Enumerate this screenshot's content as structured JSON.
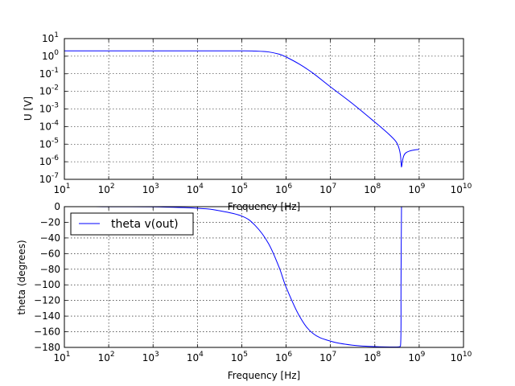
{
  "chart_data": [
    {
      "type": "line",
      "xlabel": "Frequency [Hz]",
      "ylabel": "U [V]",
      "xscale": "log",
      "yscale": "log",
      "xlim": [
        10,
        10000000000
      ],
      "ylim": [
        1e-07,
        10
      ],
      "xticks": [
        {
          "base": "10",
          "exp": "1"
        },
        {
          "base": "10",
          "exp": "2"
        },
        {
          "base": "10",
          "exp": "3"
        },
        {
          "base": "10",
          "exp": "4"
        },
        {
          "base": "10",
          "exp": "5"
        },
        {
          "base": "10",
          "exp": "6"
        },
        {
          "base": "10",
          "exp": "7"
        },
        {
          "base": "10",
          "exp": "8"
        },
        {
          "base": "10",
          "exp": "9"
        },
        {
          "base": "10",
          "exp": "10"
        }
      ],
      "yticks": [
        {
          "base": "10",
          "exp": "-7"
        },
        {
          "base": "10",
          "exp": "-6"
        },
        {
          "base": "10",
          "exp": "-5"
        },
        {
          "base": "10",
          "exp": "-4"
        },
        {
          "base": "10",
          "exp": "-3"
        },
        {
          "base": "10",
          "exp": "-2"
        },
        {
          "base": "10",
          "exp": "-1"
        },
        {
          "base": "10",
          "exp": "0"
        },
        {
          "base": "10",
          "exp": "1"
        }
      ],
      "grid": true,
      "series": [
        {
          "color": "#0000ff",
          "x": [
            10,
            100,
            1000,
            10000,
            100000,
            200000,
            400000,
            700000,
            1000000,
            2000000,
            4000000,
            10000000,
            30000000,
            100000000,
            200000000,
            300000000,
            350000000,
            380000000,
            400000000,
            420000000,
            450000000,
            500000000,
            600000000,
            800000000,
            1000000000
          ],
          "y": [
            2,
            2,
            2,
            2,
            2,
            1.95,
            1.75,
            1.3,
            0.9,
            0.35,
            0.11,
            0.018,
            0.0022,
            0.00018,
            4e-05,
            1.4e-05,
            6e-06,
            2.2e-06,
            5e-07,
            1.1e-06,
            2.2e-06,
            3.2e-06,
            4e-06,
            4.7e-06,
            5e-06
          ]
        }
      ]
    },
    {
      "type": "line",
      "xlabel": "Frequency [Hz]",
      "ylabel": "theta (degrees)",
      "xscale": "log",
      "yscale": "linear",
      "xlim": [
        10,
        10000000000
      ],
      "ylim": [
        -180,
        0
      ],
      "xticks": [
        {
          "base": "10",
          "exp": "1"
        },
        {
          "base": "10",
          "exp": "2"
        },
        {
          "base": "10",
          "exp": "3"
        },
        {
          "base": "10",
          "exp": "4"
        },
        {
          "base": "10",
          "exp": "5"
        },
        {
          "base": "10",
          "exp": "6"
        },
        {
          "base": "10",
          "exp": "7"
        },
        {
          "base": "10",
          "exp": "8"
        },
        {
          "base": "10",
          "exp": "9"
        },
        {
          "base": "10",
          "exp": "10"
        }
      ],
      "yticks": [
        0,
        -20,
        -40,
        -60,
        -80,
        -100,
        -120,
        -140,
        -160,
        -180
      ],
      "grid": true,
      "legend_placement": "upper-left",
      "series": [
        {
          "name": "theta v(out)",
          "color": "#0000ff",
          "x": [
            10,
            100,
            1000,
            10000,
            30000,
            100000,
            200000,
            400000,
            700000,
            1000000,
            2000000,
            4000000,
            10000000,
            30000000,
            100000000,
            300000000,
            380000000,
            390000000,
            400000000,
            420000000,
            1000000000
          ],
          "y": [
            0,
            -0.1,
            -0.3,
            -2,
            -5,
            -12,
            -24,
            -47,
            -78,
            -103,
            -140,
            -162,
            -172,
            -177,
            -179,
            -179.5,
            -178,
            -100,
            0,
            0,
            0
          ]
        }
      ]
    }
  ]
}
